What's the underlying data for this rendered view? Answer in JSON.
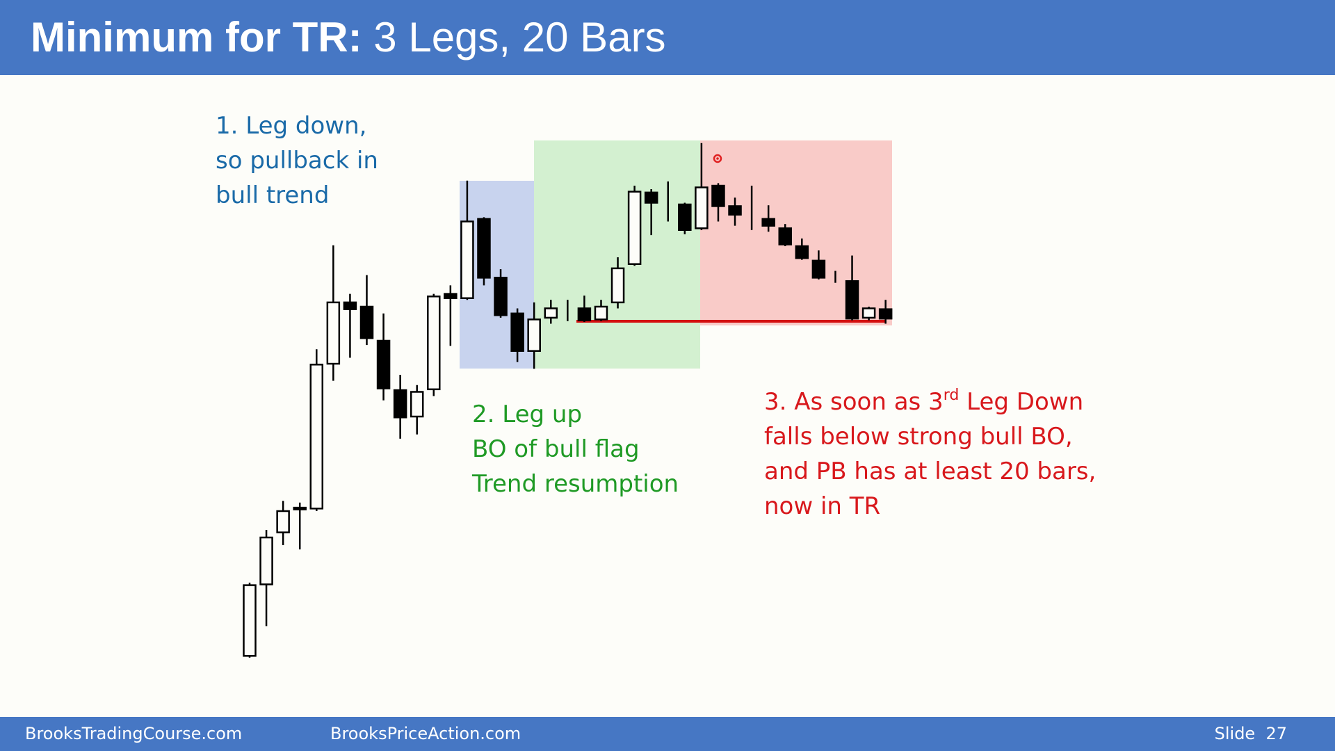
{
  "header": {
    "title_bold": "Minimum for TR:",
    "title_rest": " 3 Legs, 20 Bars"
  },
  "chart_data": {
    "type": "candlestick",
    "open": [
      30,
      114,
      175,
      202,
      203,
      373,
      445,
      440,
      400,
      342,
      311,
      343,
      455,
      450,
      543,
      474,
      432,
      388,
      427,
      435,
      438,
      425,
      445,
      490,
      574,
      560,
      560,
      532,
      582,
      558,
      545,
      543,
      532,
      511,
      494,
      472,
      470,
      427,
      437
    ],
    "high": [
      116,
      178,
      212,
      210,
      390,
      512,
      455,
      477,
      432,
      360,
      348,
      455,
      465,
      588,
      545,
      484,
      438,
      445,
      448,
      448,
      453,
      448,
      498,
      582,
      578,
      587,
      562,
      632,
      585,
      568,
      582,
      559,
      537,
      520,
      506,
      482,
      500,
      440,
      448
    ],
    "low": [
      28,
      65,
      160,
      155,
      200,
      353,
      380,
      395,
      330,
      285,
      290,
      335,
      394,
      448,
      465,
      427,
      375,
      367,
      420,
      423,
      422,
      423,
      438,
      488,
      524,
      540,
      525,
      530,
      540,
      535,
      530,
      528,
      511,
      495,
      472,
      468,
      424,
      424,
      420
    ],
    "close": [
      113,
      169,
      200,
      204,
      372,
      445,
      437,
      403,
      344,
      310,
      340,
      452,
      450,
      540,
      474,
      430,
      388,
      425,
      438,
      435,
      424,
      440,
      485,
      575,
      562,
      560,
      530,
      580,
      558,
      548,
      545,
      535,
      513,
      497,
      474,
      472,
      426,
      438,
      426
    ],
    "ylim": [
      0,
      700
    ],
    "annotations": [
      {
        "lines": [
          "1. Leg down,",
          "so pullback in",
          "bull trend"
        ]
      },
      {
        "lines": [
          "2. Leg up",
          "BO of bull flag",
          "Trend resumption"
        ]
      },
      {
        "first_line": [
          "3. As soon as 3",
          "rd",
          " Leg Down"
        ],
        "lines": [
          "falls below strong bull BO,",
          "and PB has at least 20 bars,",
          "now in TR"
        ]
      }
    ]
  },
  "footer": {
    "left": "BrooksTradingCourse.com",
    "middle": "BrooksPriceAction.com",
    "slide": "Slide  27"
  }
}
